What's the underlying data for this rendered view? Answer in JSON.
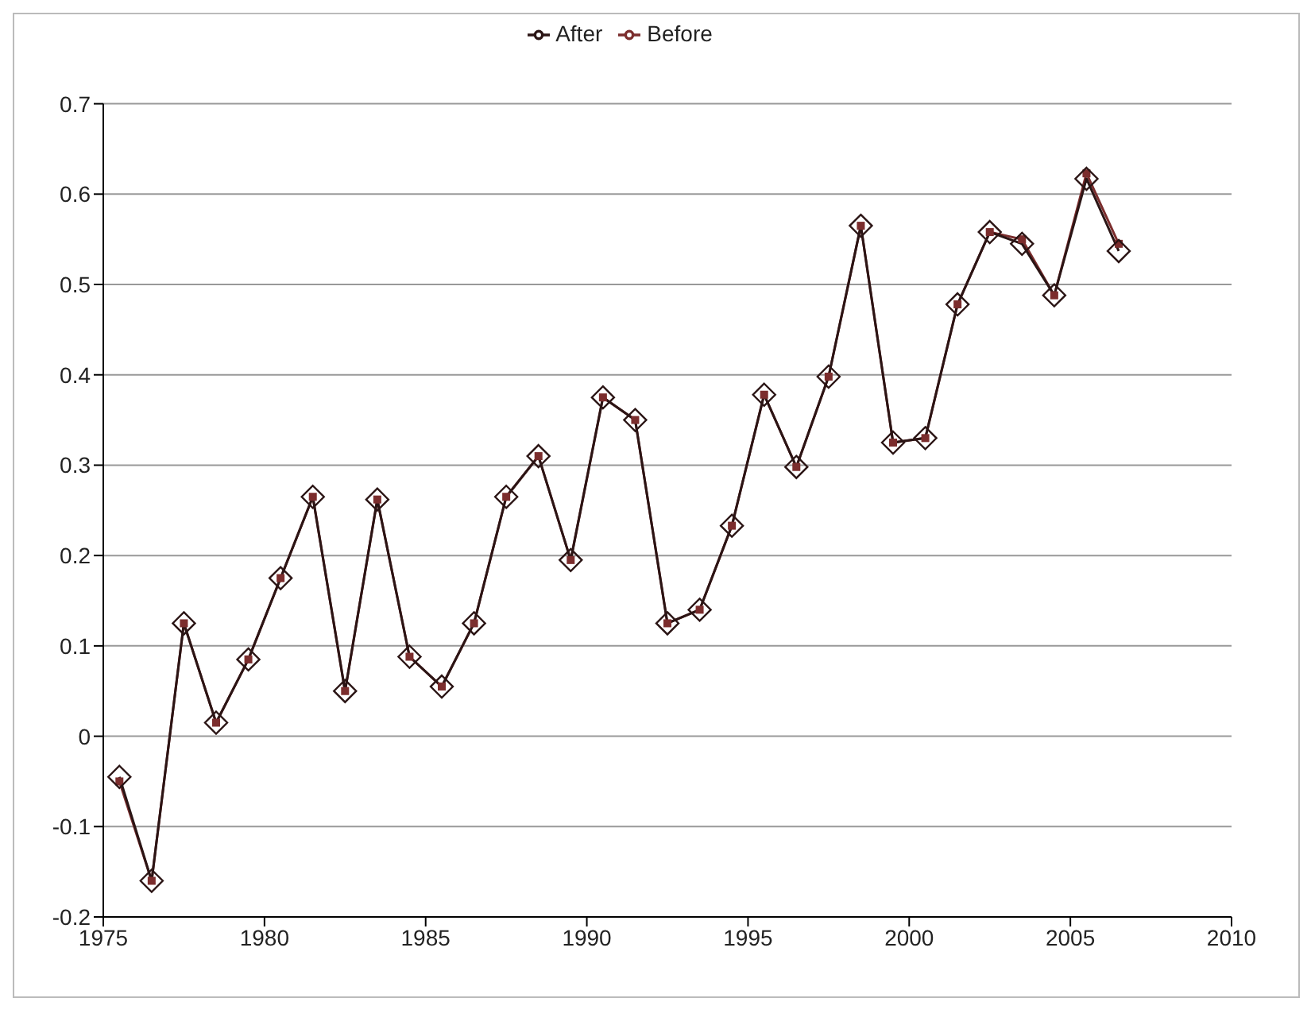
{
  "chart_data": {
    "type": "line",
    "x": [
      1975.5,
      1976.5,
      1977.5,
      1978.5,
      1979.5,
      1980.5,
      1981.5,
      1982.5,
      1983.5,
      1984.5,
      1985.5,
      1986.5,
      1987.5,
      1988.5,
      1989.5,
      1990.5,
      1991.5,
      1992.5,
      1993.5,
      1994.5,
      1995.5,
      1996.5,
      1997.5,
      1998.5,
      1999.5,
      2000.5,
      2001.5,
      2002.5,
      2003.5,
      2004.5,
      2005.5,
      2006.5
    ],
    "series": [
      {
        "name": "Before",
        "color": "#7b2d2d",
        "marker": "square",
        "values": [
          -0.05,
          -0.16,
          0.125,
          0.015,
          0.085,
          0.175,
          0.265,
          0.05,
          0.262,
          0.088,
          0.055,
          0.125,
          0.265,
          0.31,
          0.195,
          0.375,
          0.35,
          0.125,
          0.14,
          0.233,
          0.378,
          0.298,
          0.398,
          0.565,
          0.325,
          0.33,
          0.478,
          0.558,
          0.55,
          0.488,
          0.623,
          0.545
        ]
      },
      {
        "name": "After",
        "color": "#2b1515",
        "marker": "diamond",
        "values": [
          -0.045,
          -0.16,
          0.125,
          0.015,
          0.085,
          0.175,
          0.265,
          0.05,
          0.262,
          0.088,
          0.055,
          0.125,
          0.265,
          0.31,
          0.195,
          0.375,
          0.35,
          0.125,
          0.14,
          0.233,
          0.378,
          0.298,
          0.398,
          0.565,
          0.325,
          0.33,
          0.478,
          0.558,
          0.545,
          0.488,
          0.617,
          0.537
        ]
      }
    ],
    "xlim": [
      1975,
      2010
    ],
    "xticks": [
      1975,
      1980,
      1985,
      1990,
      1995,
      2000,
      2005,
      2010
    ],
    "ylim": [
      -0.2,
      0.7
    ],
    "yticks": [
      -0.2,
      -0.1,
      0,
      0.1,
      0.2,
      0.3,
      0.4,
      0.5,
      0.6,
      0.7
    ],
    "grid": "y",
    "legend": "top",
    "line_style": "solid"
  }
}
